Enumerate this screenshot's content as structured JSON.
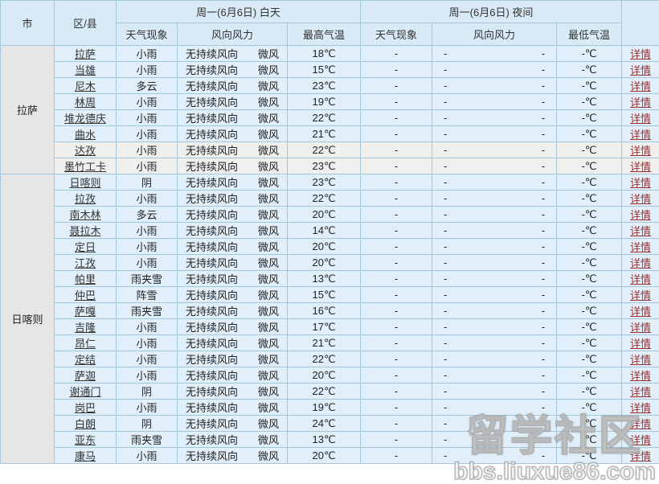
{
  "header": {
    "city": "市",
    "district": "区/县",
    "day_group": "周一(6月6日) 白天",
    "night_group": "周一(6月6日) 夜间",
    "day": {
      "weather": "天气现象",
      "wind": "风向风力",
      "temp": "最高气温"
    },
    "night": {
      "weather": "天气现象",
      "wind": "风向风力",
      "temp": "最低气温"
    }
  },
  "detail_label": "详情",
  "colors": {
    "header_bg": "#d8eaf5",
    "row_blue": "#e1effa",
    "row_gray": "#f0efed",
    "city_cell_bg": "#e6e6e6",
    "border": "#a3c6db",
    "detail_link": "#993333"
  },
  "watermark": {
    "line1": "留学社区",
    "line2": "bbs.liuxue86.com"
  },
  "groups": [
    {
      "city": "拉萨",
      "rows": [
        {
          "district": "拉萨",
          "weather": "小雨",
          "wind_dir": "无持续风向",
          "wind_force": "微风",
          "temp": "18℃",
          "night_weather": "-",
          "night_wind_dir": "-",
          "night_wind_force": "-",
          "night_temp": "-℃",
          "shade": false
        },
        {
          "district": "当雄",
          "weather": "小雨",
          "wind_dir": "无持续风向",
          "wind_force": "微风",
          "temp": "15℃",
          "night_weather": "-",
          "night_wind_dir": "-",
          "night_wind_force": "-",
          "night_temp": "-℃",
          "shade": false
        },
        {
          "district": "尼木",
          "weather": "多云",
          "wind_dir": "无持续风向",
          "wind_force": "微风",
          "temp": "23℃",
          "night_weather": "-",
          "night_wind_dir": "-",
          "night_wind_force": "-",
          "night_temp": "-℃",
          "shade": false
        },
        {
          "district": "林周",
          "weather": "小雨",
          "wind_dir": "无持续风向",
          "wind_force": "微风",
          "temp": "19℃",
          "night_weather": "-",
          "night_wind_dir": "-",
          "night_wind_force": "-",
          "night_temp": "-℃",
          "shade": false
        },
        {
          "district": "堆龙德庆",
          "weather": "小雨",
          "wind_dir": "无持续风向",
          "wind_force": "微风",
          "temp": "22℃",
          "night_weather": "-",
          "night_wind_dir": "-",
          "night_wind_force": "-",
          "night_temp": "-℃",
          "shade": false
        },
        {
          "district": "曲水",
          "weather": "小雨",
          "wind_dir": "无持续风向",
          "wind_force": "微风",
          "temp": "21℃",
          "night_weather": "-",
          "night_wind_dir": "-",
          "night_wind_force": "-",
          "night_temp": "-℃",
          "shade": false
        },
        {
          "district": "达孜",
          "weather": "小雨",
          "wind_dir": "无持续风向",
          "wind_force": "微风",
          "temp": "22℃",
          "night_weather": "-",
          "night_wind_dir": "-",
          "night_wind_force": "-",
          "night_temp": "-℃",
          "shade": true
        },
        {
          "district": "墨竹工卡",
          "weather": "小雨",
          "wind_dir": "无持续风向",
          "wind_force": "微风",
          "temp": "23℃",
          "night_weather": "-",
          "night_wind_dir": "-",
          "night_wind_force": "-",
          "night_temp": "-℃",
          "shade": true
        }
      ]
    },
    {
      "city": "日喀则",
      "rows": [
        {
          "district": "日喀则",
          "weather": "阴",
          "wind_dir": "无持续风向",
          "wind_force": "微风",
          "temp": "23℃",
          "night_weather": "-",
          "night_wind_dir": "-",
          "night_wind_force": "-",
          "night_temp": "-℃",
          "shade": false
        },
        {
          "district": "拉孜",
          "weather": "小雨",
          "wind_dir": "无持续风向",
          "wind_force": "微风",
          "temp": "22℃",
          "night_weather": "-",
          "night_wind_dir": "-",
          "night_wind_force": "-",
          "night_temp": "-℃",
          "shade": false
        },
        {
          "district": "南木林",
          "weather": "多云",
          "wind_dir": "无持续风向",
          "wind_force": "微风",
          "temp": "20℃",
          "night_weather": "-",
          "night_wind_dir": "-",
          "night_wind_force": "-",
          "night_temp": "-℃",
          "shade": false
        },
        {
          "district": "聂拉木",
          "weather": "小雨",
          "wind_dir": "无持续风向",
          "wind_force": "微风",
          "temp": "14℃",
          "night_weather": "-",
          "night_wind_dir": "-",
          "night_wind_force": "-",
          "night_temp": "-℃",
          "shade": false
        },
        {
          "district": "定日",
          "weather": "小雨",
          "wind_dir": "无持续风向",
          "wind_force": "微风",
          "temp": "20℃",
          "night_weather": "-",
          "night_wind_dir": "-",
          "night_wind_force": "-",
          "night_temp": "-℃",
          "shade": false
        },
        {
          "district": "江孜",
          "weather": "小雨",
          "wind_dir": "无持续风向",
          "wind_force": "微风",
          "temp": "20℃",
          "night_weather": "-",
          "night_wind_dir": "-",
          "night_wind_force": "-",
          "night_temp": "-℃",
          "shade": false
        },
        {
          "district": "帕里",
          "weather": "雨夹雪",
          "wind_dir": "无持续风向",
          "wind_force": "微风",
          "temp": "13℃",
          "night_weather": "-",
          "night_wind_dir": "-",
          "night_wind_force": "-",
          "night_temp": "-℃",
          "shade": false
        },
        {
          "district": "仲巴",
          "weather": "阵雪",
          "wind_dir": "无持续风向",
          "wind_force": "微风",
          "temp": "15℃",
          "night_weather": "-",
          "night_wind_dir": "-",
          "night_wind_force": "-",
          "night_temp": "-℃",
          "shade": false
        },
        {
          "district": "萨嘎",
          "weather": "雨夹雪",
          "wind_dir": "无持续风向",
          "wind_force": "微风",
          "temp": "16℃",
          "night_weather": "-",
          "night_wind_dir": "-",
          "night_wind_force": "-",
          "night_temp": "-℃",
          "shade": false
        },
        {
          "district": "吉隆",
          "weather": "小雨",
          "wind_dir": "无持续风向",
          "wind_force": "微风",
          "temp": "17℃",
          "night_weather": "-",
          "night_wind_dir": "-",
          "night_wind_force": "-",
          "night_temp": "-℃",
          "shade": false
        },
        {
          "district": "昂仁",
          "weather": "小雨",
          "wind_dir": "无持续风向",
          "wind_force": "微风",
          "temp": "21℃",
          "night_weather": "-",
          "night_wind_dir": "-",
          "night_wind_force": "-",
          "night_temp": "-℃",
          "shade": false
        },
        {
          "district": "定结",
          "weather": "小雨",
          "wind_dir": "无持续风向",
          "wind_force": "微风",
          "temp": "22℃",
          "night_weather": "-",
          "night_wind_dir": "-",
          "night_wind_force": "-",
          "night_temp": "-℃",
          "shade": false
        },
        {
          "district": "萨迦",
          "weather": "小雨",
          "wind_dir": "无持续风向",
          "wind_force": "微风",
          "temp": "20℃",
          "night_weather": "-",
          "night_wind_dir": "-",
          "night_wind_force": "-",
          "night_temp": "-℃",
          "shade": false
        },
        {
          "district": "谢通门",
          "weather": "阴",
          "wind_dir": "无持续风向",
          "wind_force": "微风",
          "temp": "22℃",
          "night_weather": "-",
          "night_wind_dir": "-",
          "night_wind_force": "-",
          "night_temp": "-℃",
          "shade": false
        },
        {
          "district": "岗巴",
          "weather": "小雨",
          "wind_dir": "无持续风向",
          "wind_force": "微风",
          "temp": "19℃",
          "night_weather": "-",
          "night_wind_dir": "-",
          "night_wind_force": "-",
          "night_temp": "-℃",
          "shade": false
        },
        {
          "district": "白朗",
          "weather": "阴",
          "wind_dir": "无持续风向",
          "wind_force": "微风",
          "temp": "24℃",
          "night_weather": "-",
          "night_wind_dir": "-",
          "night_wind_force": "-",
          "night_temp": "-℃",
          "shade": false
        },
        {
          "district": "亚东",
          "weather": "雨夹雪",
          "wind_dir": "无持续风向",
          "wind_force": "微风",
          "temp": "13℃",
          "night_weather": "-",
          "night_wind_dir": "-",
          "night_wind_force": "-",
          "night_temp": "-℃",
          "shade": false
        },
        {
          "district": "康马",
          "weather": "小雨",
          "wind_dir": "无持续风向",
          "wind_force": "微风",
          "temp": "20℃",
          "night_weather": "-",
          "night_wind_dir": "-",
          "night_wind_force": "-",
          "night_temp": "-℃",
          "shade": false
        }
      ]
    }
  ]
}
